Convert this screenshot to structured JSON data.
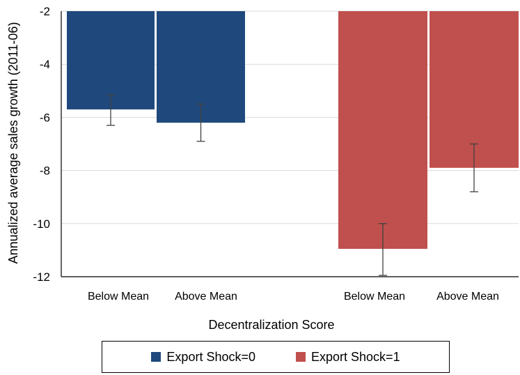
{
  "chart_data": {
    "type": "bar",
    "title": "",
    "xlabel": "Decentralization Score",
    "ylabel": "Annualized average sales growth (2011-06)",
    "ylim": [
      -12,
      -2
    ],
    "yticks": [
      -2,
      -4,
      -6,
      -8,
      -10,
      -12
    ],
    "grid": true,
    "legend_position": "bottom",
    "groups": [
      {
        "series": "Export Shock=0",
        "bars": [
          {
            "category": "Below Mean",
            "value": -5.7,
            "err_low": -6.3,
            "err_high": -5.15
          },
          {
            "category": "Above Mean",
            "value": -6.2,
            "err_low": -6.9,
            "err_high": -5.5
          }
        ]
      },
      {
        "series": "Export Shock=1",
        "bars": [
          {
            "category": "Below Mean",
            "value": -10.95,
            "err_low": -11.95,
            "err_high": -10.0
          },
          {
            "category": "Above Mean",
            "value": -7.9,
            "err_low": -8.8,
            "err_high": -7.0
          }
        ]
      }
    ],
    "series": [
      {
        "name": "Export Shock=0",
        "color": "#1f497d"
      },
      {
        "name": "Export Shock=1",
        "color": "#c0504d"
      }
    ]
  }
}
